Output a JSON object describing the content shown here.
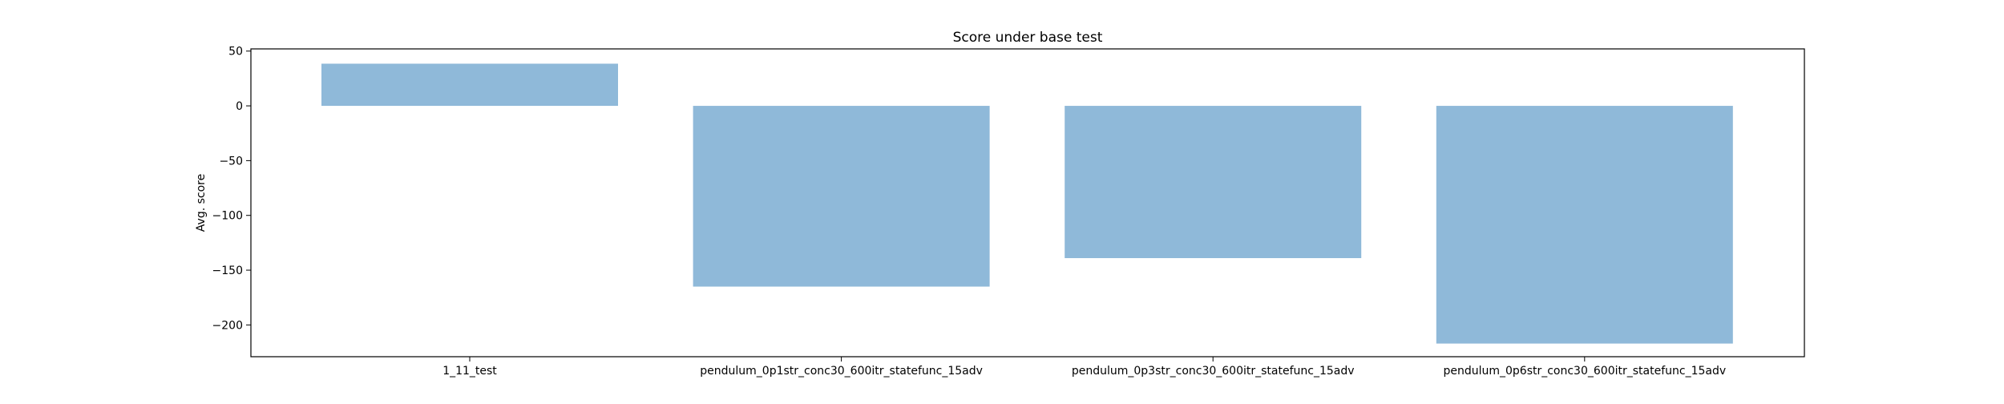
{
  "chart_data": {
    "type": "bar",
    "title": "Score under base test",
    "xlabel": "",
    "ylabel": "Avg. score",
    "categories": [
      "1_11_test",
      "pendulum_0p1str_conc30_600itr_statefunc_15adv",
      "pendulum_0p3str_conc30_600itr_statefunc_15adv",
      "pendulum_0p6str_conc30_600itr_statefunc_15adv"
    ],
    "values": [
      38.5,
      -165,
      -139,
      -217
    ],
    "ylim": [
      -229,
      52
    ],
    "yticks": [
      50,
      0,
      -50,
      -100,
      -150,
      -200
    ],
    "ytick_labels": [
      "50",
      "0",
      "−50",
      "−100",
      "−150",
      "−200"
    ],
    "bar_color": "#8fb9d9",
    "grid": false,
    "legend": "none"
  }
}
